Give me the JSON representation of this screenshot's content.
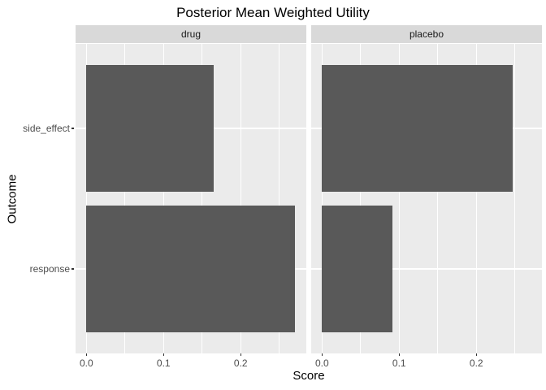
{
  "title": "Posterior Mean Weighted Utility",
  "chart_data": {
    "type": "bar",
    "orientation": "horizontal",
    "title": "Posterior Mean Weighted Utility",
    "xlabel": "Score",
    "ylabel": "Outcome",
    "categories": [
      "side_effect",
      "response"
    ],
    "facets": [
      {
        "label": "drug",
        "values": [
          0.165,
          0.27
        ]
      },
      {
        "label": "placebo",
        "values": [
          0.247,
          0.091
        ]
      }
    ],
    "x_ticks": [
      0.0,
      0.1,
      0.2
    ],
    "x_tick_labels": [
      "0.0",
      "0.1",
      "0.2"
    ],
    "x_minor_ticks": [
      0.05,
      0.15,
      0.25
    ],
    "xlim": [
      -0.014,
      0.285
    ],
    "grid": true,
    "legend": "none",
    "colors": {
      "bar": "#595959",
      "panel_bg": "#EBEBEB",
      "strip_bg": "#D9D9D9",
      "grid": "#FFFFFF",
      "tick_mark": "#333333",
      "axis_text": "#4D4D4D",
      "title_text": "#000000"
    }
  }
}
